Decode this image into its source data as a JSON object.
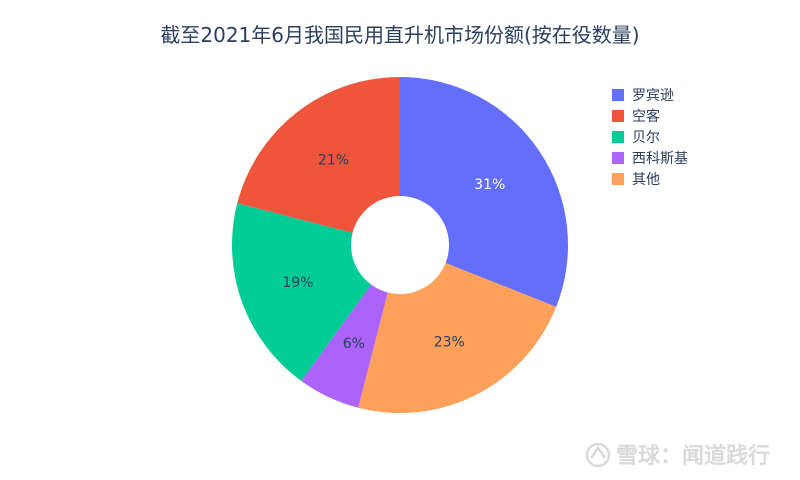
{
  "chart_data": {
    "type": "pie",
    "title": "截至2021年6月我国民用直升机市场份额(按在役数量)",
    "hole": true,
    "slices": [
      {
        "label": "罗宾逊",
        "value": 31,
        "text": "31%",
        "color": "#636efa",
        "text_color": "#ffffff"
      },
      {
        "label": "其他",
        "value": 23,
        "text": "23%",
        "color": "#ffa15a",
        "text_color": "#2a3f5f"
      },
      {
        "label": "西科斯基",
        "value": 6,
        "text": "6%",
        "color": "#ab63fa",
        "text_color": "#2a3f5f"
      },
      {
        "label": "贝尔",
        "value": 19,
        "text": "19%",
        "color": "#00cc96",
        "text_color": "#2a3f5f"
      },
      {
        "label": "空客",
        "value": 21,
        "text": "21%",
        "color": "#ef553b",
        "text_color": "#2a3f5f"
      }
    ],
    "legend": {
      "placement": "right",
      "items": [
        {
          "label": "罗宾逊",
          "color": "#636efa"
        },
        {
          "label": "空客",
          "color": "#ef553b"
        },
        {
          "label": "贝尔",
          "color": "#00cc96"
        },
        {
          "label": "西科斯基",
          "color": "#ab63fa"
        },
        {
          "label": "其他",
          "color": "#ffa15a"
        }
      ]
    }
  },
  "watermark": {
    "text": "雪球：闻道践行"
  }
}
